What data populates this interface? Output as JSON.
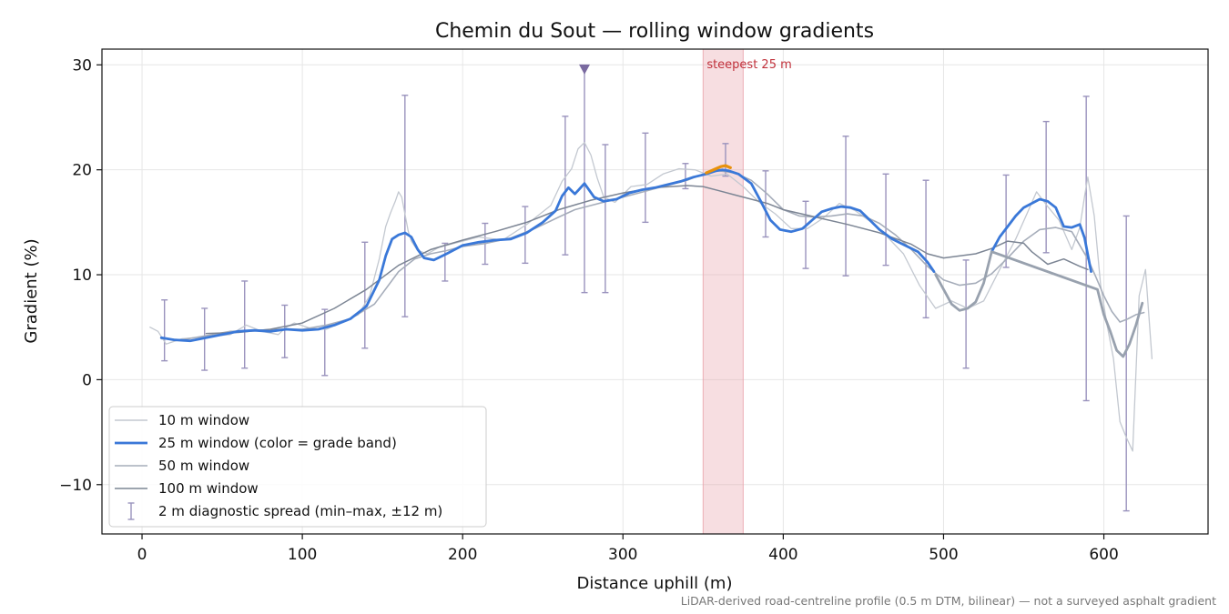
{
  "chart_data": {
    "type": "line",
    "title": "Chemin du Sout — rolling window gradients",
    "xlabel": "Distance uphill (m)",
    "ylabel": "Gradient (%)",
    "xlim": [
      -25,
      665
    ],
    "ylim": [
      -14.7,
      31.5
    ],
    "xticks": [
      0,
      100,
      200,
      300,
      400,
      500,
      600
    ],
    "yticks": [
      -10,
      0,
      10,
      20,
      30
    ],
    "xtick_labels": [
      "0",
      "100",
      "200",
      "300",
      "400",
      "500",
      "600"
    ],
    "ytick_labels": [
      "−10",
      "0",
      "10",
      "20",
      "30"
    ],
    "grid": true,
    "legend_position": "lower-left",
    "footnote": "LiDAR-derived road-centreline profile (0.5 m DTM, bilinear) — not a surveyed asphalt gradient",
    "steepest": {
      "label": "steepest 25 m",
      "x_start": 350,
      "x_end": 375,
      "color": "#c0303a",
      "band_color": "#e8a0a8"
    },
    "peak_marker": {
      "x": 276,
      "y": 29.6,
      "color": "#7a6aa0"
    },
    "legend": [
      {
        "label": "10 m window",
        "color": "#c3c8d0",
        "style": "line",
        "width": 1.4
      },
      {
        "label": "25 m window (color = grade band)",
        "color": "#3a78d8",
        "style": "line",
        "width": 2.8
      },
      {
        "label": "50 m window",
        "color": "#a6adba",
        "style": "line",
        "width": 1.6
      },
      {
        "label": "100 m window",
        "color": "#7c8594",
        "style": "line",
        "width": 1.6
      },
      {
        "label": "2 m diagnostic spread (min–max, ±12 m)",
        "color": "#9a93bd",
        "style": "errorbar",
        "width": 1.4
      }
    ],
    "series": [
      {
        "name": "10 m window",
        "color": "#c3c8d0",
        "width": 1.3,
        "x": [
          5,
          10,
          15,
          25,
          40,
          55,
          65,
          75,
          85,
          90,
          95,
          105,
          115,
          125,
          135,
          142,
          148,
          152,
          155,
          158,
          160,
          162,
          164,
          166,
          168,
          172,
          178,
          185,
          195,
          210,
          225,
          240,
          255,
          262,
          268,
          272,
          276,
          280,
          284,
          288,
          295,
          305,
          315,
          325,
          335,
          345,
          355,
          365,
          375,
          385,
          395,
          405,
          415,
          425,
          435,
          445,
          455,
          465,
          475,
          485,
          495,
          505,
          515,
          525,
          535,
          545,
          552,
          558,
          565,
          572,
          580,
          585,
          588,
          590,
          594,
          598,
          602,
          606,
          610,
          614,
          618,
          622,
          626,
          630
        ],
        "y": [
          5.0,
          4.6,
          3.4,
          3.9,
          4.1,
          4.3,
          5.2,
          4.6,
          4.3,
          5.0,
          5.4,
          4.9,
          4.8,
          5.5,
          6.2,
          8.0,
          11.5,
          14.6,
          15.9,
          17.0,
          17.9,
          17.4,
          15.8,
          14.2,
          13.2,
          12.3,
          12.0,
          12.6,
          13.0,
          13.6,
          13.3,
          14.8,
          16.6,
          18.9,
          20.1,
          22.0,
          22.6,
          21.4,
          19.2,
          17.4,
          16.9,
          18.4,
          18.6,
          19.6,
          20.1,
          20.0,
          19.4,
          19.6,
          18.4,
          16.9,
          15.8,
          14.4,
          14.4,
          15.4,
          16.8,
          16.1,
          15.0,
          13.6,
          12.0,
          9.0,
          6.8,
          7.5,
          6.8,
          7.5,
          10.5,
          13.4,
          15.8,
          17.9,
          16.5,
          15.2,
          12.4,
          14.5,
          17.5,
          19.3,
          15.6,
          9.0,
          5.2,
          2.0,
          -4.0,
          -5.5,
          -6.8,
          8.0,
          10.5,
          2.0
        ]
      },
      {
        "name": "50 m window",
        "color": "#a6adba",
        "width": 1.6,
        "x": [
          12,
          25,
          40,
          55,
          70,
          85,
          100,
          115,
          130,
          145,
          160,
          170,
          180,
          190,
          200,
          215,
          230,
          245,
          260,
          270,
          280,
          290,
          300,
          310,
          320,
          330,
          340,
          350,
          360,
          370,
          380,
          390,
          400,
          410,
          420,
          430,
          440,
          450,
          460,
          470,
          480,
          490,
          500,
          510,
          520,
          530,
          540,
          550,
          560,
          570,
          580,
          590,
          595,
          600,
          605,
          610,
          615,
          620,
          625
        ],
        "y": [
          3.9,
          3.8,
          4.2,
          4.6,
          4.7,
          4.8,
          4.8,
          5.2,
          5.8,
          7.2,
          10.3,
          11.5,
          12.0,
          12.3,
          12.7,
          13.0,
          13.5,
          14.4,
          15.5,
          16.2,
          16.6,
          17.0,
          17.4,
          17.8,
          18.2,
          18.6,
          19.0,
          19.6,
          19.9,
          19.7,
          19.0,
          17.7,
          16.2,
          15.6,
          15.5,
          15.6,
          15.8,
          15.6,
          14.9,
          13.8,
          12.4,
          10.8,
          9.5,
          9.0,
          9.2,
          10.1,
          11.6,
          13.2,
          14.3,
          14.5,
          14.1,
          11.5,
          9.8,
          8.0,
          6.5,
          5.5,
          5.8,
          6.2,
          6.4
        ]
      },
      {
        "name": "100 m window",
        "color": "#7c8594",
        "width": 1.5,
        "x": [
          40,
          60,
          80,
          100,
          120,
          140,
          160,
          180,
          200,
          220,
          240,
          260,
          280,
          300,
          320,
          340,
          350,
          360,
          370,
          380,
          390,
          400,
          420,
          440,
          460,
          480,
          490,
          500,
          520,
          530,
          540,
          550,
          555,
          565,
          575,
          585,
          590
        ],
        "y": [
          4.4,
          4.5,
          4.8,
          5.4,
          6.8,
          8.6,
          10.9,
          12.4,
          13.3,
          14.1,
          15.0,
          16.2,
          17.1,
          17.8,
          18.3,
          18.5,
          18.4,
          18.0,
          17.6,
          17.2,
          16.8,
          16.2,
          15.5,
          14.8,
          14.0,
          12.9,
          12.0,
          11.6,
          12.0,
          12.5,
          13.2,
          13.0,
          12.2,
          11.0,
          11.5,
          10.8,
          10.5
        ]
      },
      {
        "name": "25 m window",
        "color": "#3a78d8",
        "width": 2.8,
        "x": [
          12,
          20,
          30,
          40,
          50,
          60,
          70,
          80,
          90,
          100,
          110,
          120,
          130,
          140,
          148,
          152,
          156,
          160,
          164,
          168,
          172,
          176,
          182,
          190,
          200,
          210,
          220,
          230,
          240,
          250,
          258,
          262,
          266,
          270,
          276,
          282,
          288,
          296,
          304,
          312,
          320,
          328,
          336,
          344,
          352,
          358,
          362,
          366,
          372,
          380,
          386,
          392,
          398,
          405,
          412,
          418,
          424,
          430,
          436,
          442,
          448,
          454,
          460,
          468,
          476,
          484,
          490,
          494
        ],
        "y": [
          4.0,
          3.8,
          3.7,
          4.0,
          4.3,
          4.6,
          4.7,
          4.6,
          4.8,
          4.7,
          4.8,
          5.2,
          5.8,
          7.0,
          9.5,
          11.8,
          13.4,
          13.8,
          14.0,
          13.6,
          12.4,
          11.6,
          11.4,
          12.0,
          12.8,
          13.1,
          13.3,
          13.4,
          14.0,
          15.0,
          16.1,
          17.5,
          18.3,
          17.7,
          18.7,
          17.4,
          17.0,
          17.2,
          17.8,
          18.1,
          18.3,
          18.6,
          18.9,
          19.3,
          19.6,
          19.9,
          20.0,
          19.9,
          19.6,
          18.7,
          17.0,
          15.2,
          14.3,
          14.1,
          14.4,
          15.2,
          16.0,
          16.3,
          16.5,
          16.4,
          16.1,
          15.2,
          14.3,
          13.4,
          12.8,
          12.2,
          11.2,
          10.3
        ]
      },
      {
        "name": "25 m window",
        "color": "#e8910c",
        "width": 3.2,
        "x": [
          352,
          355,
          358,
          361,
          364,
          367
        ],
        "y": [
          19.7,
          19.9,
          20.1,
          20.3,
          20.4,
          20.2
        ]
      },
      {
        "name": "25 m window",
        "color": "#3a78d8",
        "width": 2.8,
        "x": [
          530,
          535,
          540,
          545,
          550,
          555,
          560,
          565,
          570,
          575,
          580,
          585,
          588,
          592
        ],
        "y": [
          12.2,
          13.6,
          14.6,
          15.6,
          16.4,
          16.8,
          17.2,
          17.0,
          16.4,
          14.6,
          14.5,
          14.8,
          13.5,
          10.3
        ]
      },
      {
        "name": "25 m window",
        "color": "#98a1ae",
        "width": 2.8,
        "x": [
          495,
          505,
          510,
          515,
          520,
          525,
          530,
          596,
          600,
          604,
          608,
          612,
          616,
          620,
          624
        ],
        "y": [
          10.0,
          7.2,
          6.6,
          6.8,
          7.4,
          9.2,
          12.2,
          8.6,
          6.2,
          4.6,
          2.8,
          2.2,
          3.4,
          5.2,
          7.3
        ]
      }
    ],
    "errorbars": {
      "name": "2 m diagnostic spread (min–max, ±12 m)",
      "color": "#9a93bd",
      "points": [
        {
          "x": 14,
          "low": 1.8,
          "high": 7.6
        },
        {
          "x": 39,
          "low": 0.9,
          "high": 6.8
        },
        {
          "x": 64,
          "low": 1.1,
          "high": 9.4
        },
        {
          "x": 89,
          "low": 2.1,
          "high": 7.1
        },
        {
          "x": 114,
          "low": 0.4,
          "high": 6.7
        },
        {
          "x": 139,
          "low": 3.0,
          "high": 13.1
        },
        {
          "x": 164,
          "low": 6.0,
          "high": 27.1
        },
        {
          "x": 189,
          "low": 9.4,
          "high": 13.0
        },
        {
          "x": 214,
          "low": 11.0,
          "high": 14.9
        },
        {
          "x": 239,
          "low": 11.1,
          "high": 16.5
        },
        {
          "x": 264,
          "low": 11.9,
          "high": 25.1
        },
        {
          "x": 276,
          "low": 8.3,
          "high": 29.8
        },
        {
          "x": 289,
          "low": 8.3,
          "high": 22.4
        },
        {
          "x": 314,
          "low": 15.0,
          "high": 23.5
        },
        {
          "x": 339,
          "low": 18.2,
          "high": 20.6
        },
        {
          "x": 364,
          "low": 19.4,
          "high": 22.5
        },
        {
          "x": 389,
          "low": 13.6,
          "high": 19.9
        },
        {
          "x": 414,
          "low": 10.6,
          "high": 17.0
        },
        {
          "x": 439,
          "low": 9.9,
          "high": 23.2
        },
        {
          "x": 464,
          "low": 10.9,
          "high": 19.6
        },
        {
          "x": 489,
          "low": 5.9,
          "high": 19.0
        },
        {
          "x": 514,
          "low": 1.1,
          "high": 11.4
        },
        {
          "x": 539,
          "low": 10.7,
          "high": 19.5
        },
        {
          "x": 564,
          "low": 12.1,
          "high": 24.6
        },
        {
          "x": 589,
          "low": -2.0,
          "high": 27.0
        },
        {
          "x": 614,
          "low": -12.5,
          "high": 15.6
        }
      ]
    }
  }
}
